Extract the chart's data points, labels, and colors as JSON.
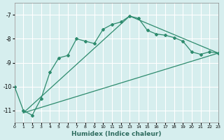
{
  "xlabel": "Humidex (Indice chaleur)",
  "ylabel": "",
  "background_color": "#d6eeee",
  "grid_color": "#ffffff",
  "line_color": "#2e8b6e",
  "xlim": [
    0,
    23
  ],
  "ylim": [
    -11.5,
    -6.5
  ],
  "yticks": [
    -11,
    -10,
    -9,
    -8,
    -7
  ],
  "xticks": [
    0,
    1,
    2,
    3,
    4,
    5,
    6,
    7,
    8,
    9,
    10,
    11,
    12,
    13,
    14,
    15,
    16,
    17,
    18,
    19,
    20,
    21,
    22,
    23
  ],
  "line1_x": [
    0,
    1,
    2,
    3,
    4,
    5,
    6,
    7,
    8,
    9,
    10,
    11,
    12,
    13,
    14,
    15,
    16,
    17,
    18,
    19,
    20,
    21,
    22,
    23
  ],
  "line1_y": [
    -10.0,
    -11.0,
    -11.2,
    -10.5,
    -9.4,
    -8.8,
    -8.7,
    -8.0,
    -8.1,
    -8.2,
    -7.6,
    -7.4,
    -7.3,
    -7.05,
    -7.15,
    -7.65,
    -7.8,
    -7.85,
    -7.95,
    -8.1,
    -8.55,
    -8.65,
    -8.55,
    -8.6
  ],
  "line2_x": [
    1,
    23
  ],
  "line2_y": [
    -11.1,
    -8.6
  ],
  "line3_x": [
    1,
    13,
    23
  ],
  "line3_y": [
    -11.1,
    -7.05,
    -8.6
  ]
}
